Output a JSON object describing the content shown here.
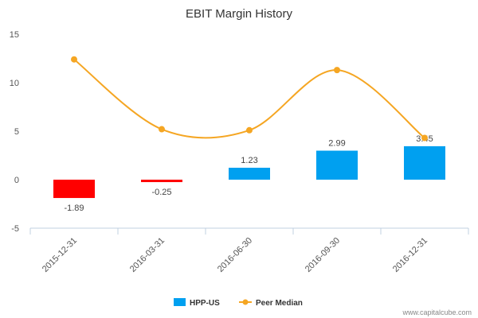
{
  "colors": {
    "positive_bar": "#00a0f0",
    "negative_bar": "#ff0000",
    "peer_line": "#f5a623",
    "axis": "#c0d0e0",
    "text": "#555555"
  },
  "credit": "www.capitalcube.com",
  "chart_data": {
    "type": "bar",
    "title": "EBIT Margin History",
    "categories": [
      "2015-12-31",
      "2016-03-31",
      "2016-06-30",
      "2016-09-30",
      "2016-12-31"
    ],
    "series": [
      {
        "name": "HPP-US",
        "type": "bar",
        "values": [
          -1.89,
          -0.25,
          1.23,
          2.99,
          3.45
        ],
        "labels": [
          "-1.89",
          "-0.25",
          "1.23",
          "2.99",
          "3.45"
        ]
      },
      {
        "name": "Peer Median",
        "type": "line",
        "smooth": true,
        "values": [
          12.4,
          5.2,
          5.1,
          11.3,
          4.3
        ]
      }
    ],
    "ylim": [
      -5,
      15
    ],
    "yticks": [
      "15",
      "10",
      "5",
      "0",
      "-5"
    ],
    "ytick_values": [
      15,
      10,
      5,
      0,
      -5
    ],
    "grid": false,
    "legend": "bottom-center"
  }
}
